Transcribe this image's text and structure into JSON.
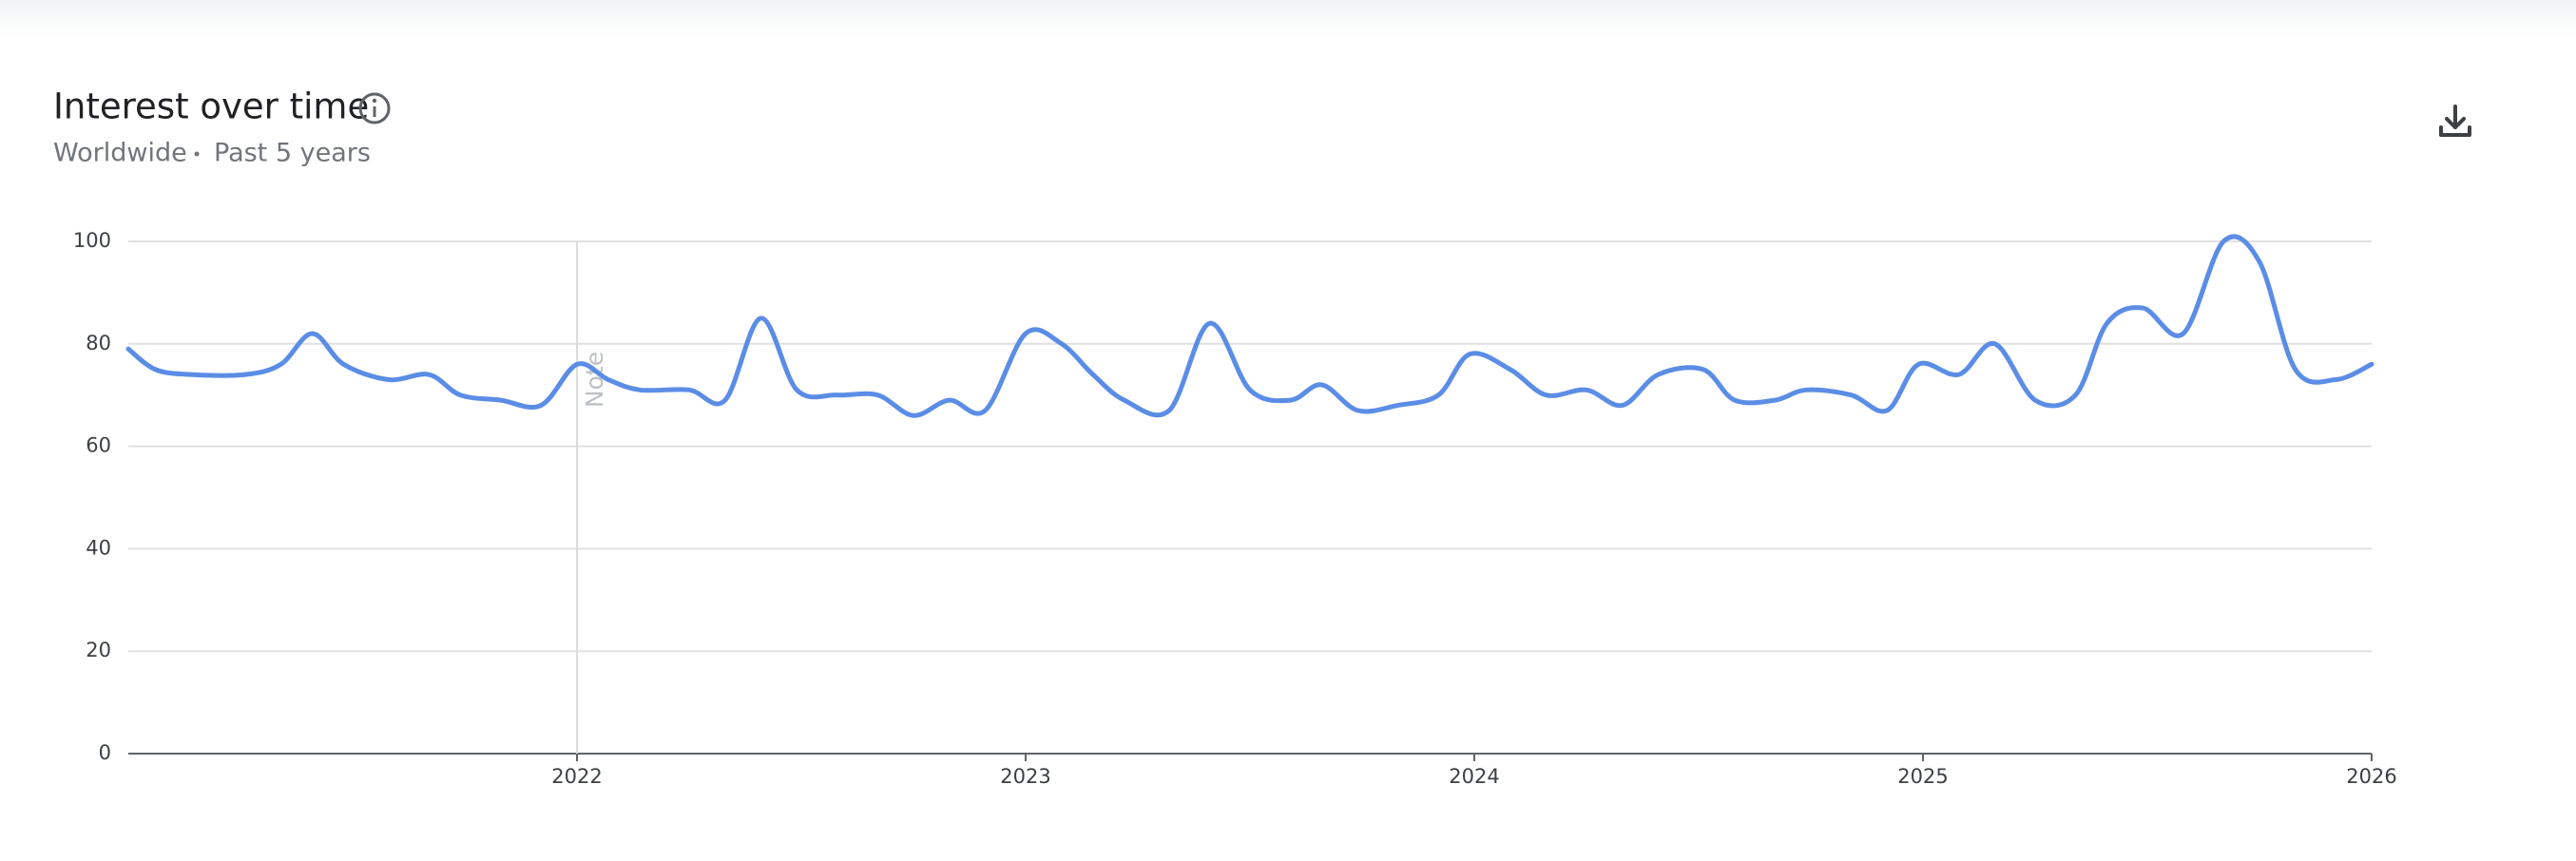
{
  "header": {
    "title": "Interest over time",
    "region": "Worldwide",
    "period": "Past 5 years"
  },
  "chart_data": {
    "type": "line",
    "x": [
      2021.0,
      2021.06,
      2021.14,
      2021.26,
      2021.34,
      2021.41,
      2021.48,
      2021.58,
      2021.67,
      2021.74,
      2021.83,
      2021.92,
      2022.0,
      2022.07,
      2022.14,
      2022.25,
      2022.33,
      2022.41,
      2022.49,
      2022.58,
      2022.67,
      2022.75,
      2022.83,
      2022.91,
      2023.0,
      2023.08,
      2023.15,
      2023.22,
      2023.32,
      2023.41,
      2023.5,
      2023.59,
      2023.66,
      2023.74,
      2023.83,
      2023.92,
      2023.99,
      2024.08,
      2024.16,
      2024.25,
      2024.33,
      2024.41,
      2024.51,
      2024.58,
      2024.67,
      2024.74,
      2024.84,
      2024.92,
      2024.99,
      2025.08,
      2025.16,
      2025.25,
      2025.34,
      2025.41,
      2025.49,
      2025.58,
      2025.67,
      2025.75,
      2025.83,
      2025.92,
      2026.0
    ],
    "series": [
      {
        "color": "#5b8de6",
        "values": [
          79,
          75,
          74,
          74,
          76,
          82,
          76,
          73,
          74,
          70,
          69,
          68,
          76,
          73,
          71,
          71,
          69,
          85,
          71,
          70,
          70,
          66,
          69,
          67,
          82,
          80,
          74,
          69,
          67,
          84,
          71,
          69,
          72,
          67,
          68,
          70,
          78,
          75,
          70,
          71,
          68,
          74,
          75,
          69,
          69,
          71,
          70,
          67,
          76,
          74,
          80,
          69,
          70,
          84,
          87,
          82,
          100,
          96,
          75,
          73,
          76
        ]
      }
    ],
    "xlim": [
      2021,
      2026
    ],
    "xticks": [
      2022,
      2023,
      2024,
      2025,
      2026
    ],
    "ylim": [
      0,
      100
    ],
    "yticks": [
      0,
      20,
      40,
      60,
      80,
      100
    ],
    "grid": true,
    "annotations": [
      {
        "label": "Note",
        "x": 2022
      }
    ]
  }
}
